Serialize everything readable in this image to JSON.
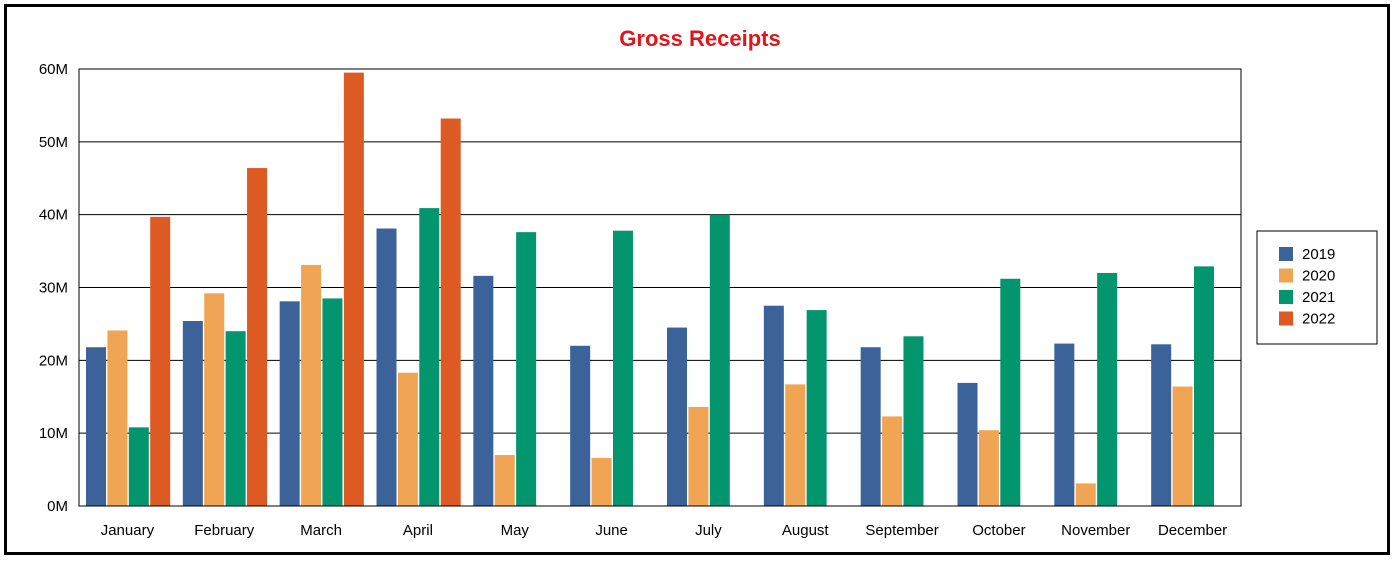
{
  "chart_data": {
    "type": "bar",
    "title": "Gross Receipts",
    "title_color": "#e0161c",
    "categories": [
      "January",
      "February",
      "March",
      "April",
      "May",
      "June",
      "July",
      "August",
      "September",
      "October",
      "November",
      "December"
    ],
    "y_ticks": [
      "0M",
      "10M",
      "20M",
      "30M",
      "40M",
      "50M",
      "60M"
    ],
    "ylim": [
      0,
      60
    ],
    "y_unit": "M",
    "grid": true,
    "legend_position": "right",
    "series": [
      {
        "name": "2019",
        "color": "#3c6399",
        "values": [
          21.8,
          25.4,
          28.1,
          38.1,
          31.6,
          22.0,
          24.5,
          27.5,
          21.8,
          16.9,
          22.3,
          22.2
        ]
      },
      {
        "name": "2020",
        "color": "#f0a555",
        "values": [
          24.1,
          29.2,
          33.1,
          18.3,
          7.0,
          6.6,
          13.6,
          16.7,
          12.3,
          10.4,
          3.1,
          16.4
        ]
      },
      {
        "name": "2021",
        "color": "#03956e",
        "values": [
          10.8,
          24.0,
          28.5,
          40.9,
          37.6,
          37.8,
          40.0,
          26.9,
          23.3,
          31.2,
          32.0,
          32.9
        ]
      },
      {
        "name": "2022",
        "color": "#dd5a22",
        "values": [
          39.7,
          46.4,
          59.5,
          53.2,
          null,
          null,
          null,
          null,
          null,
          null,
          null,
          null
        ]
      }
    ]
  }
}
